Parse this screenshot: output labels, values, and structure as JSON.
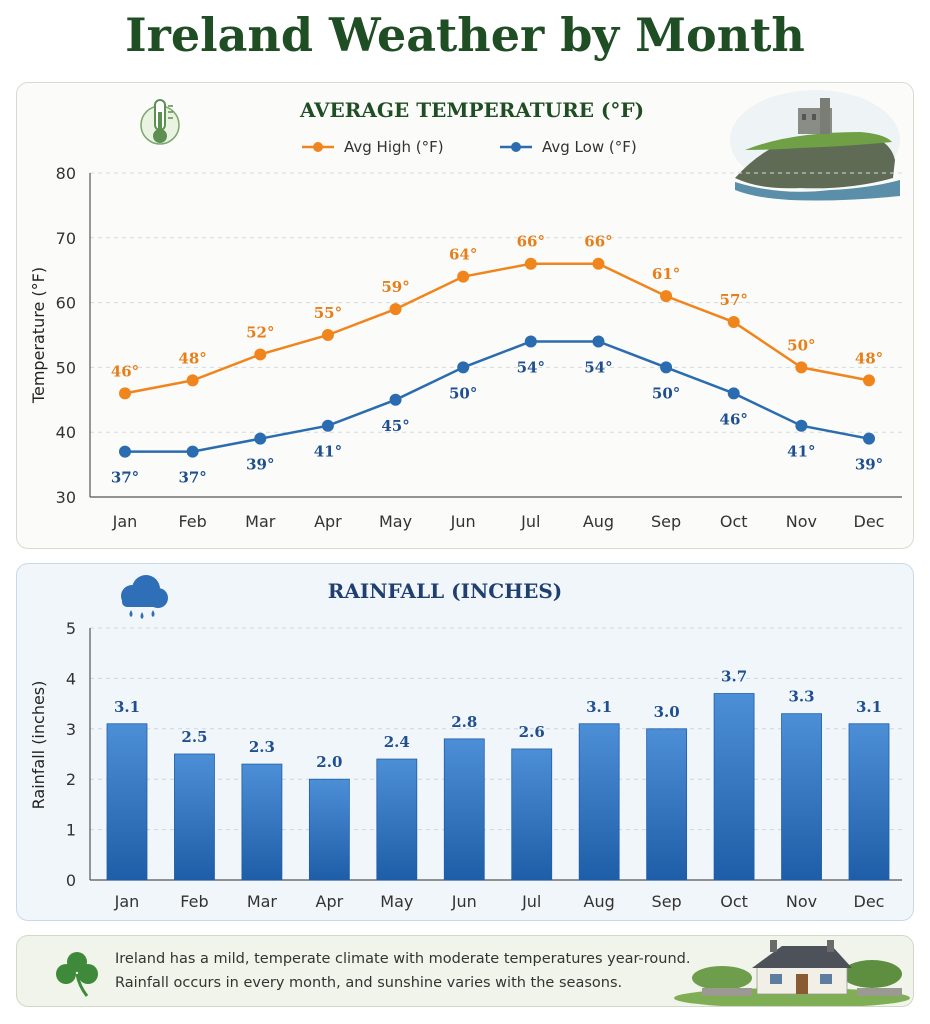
{
  "page": {
    "title": "Ireland Weather by Month"
  },
  "icons": {
    "temperature": "thermometer-icon",
    "rain": "rain-cloud-icon",
    "footer": "shamrock-icon",
    "castle_scene": "castle-cliff-illustration",
    "cottage_scene": "cottage-illustration"
  },
  "chart_data": [
    {
      "type": "line",
      "title": "AVERAGE TEMPERATURE (°F)",
      "ylabel": "Temperature (°F)",
      "xlabel": "",
      "categories": [
        "Jan",
        "Feb",
        "Mar",
        "Apr",
        "May",
        "Jun",
        "Jul",
        "Aug",
        "Sep",
        "Oct",
        "Nov",
        "Dec"
      ],
      "ylim": [
        30,
        80
      ],
      "yticks": [
        30,
        40,
        50,
        60,
        70,
        80
      ],
      "grid": true,
      "legend": "top-center",
      "series": [
        {
          "name": "Avg High (°F)",
          "color": "#f0851e",
          "label_color": "#e67e1a",
          "values": [
            46,
            48,
            52,
            55,
            59,
            64,
            66,
            66,
            61,
            57,
            50,
            48
          ]
        },
        {
          "name": "Avg Low (°F)",
          "color": "#2b6cb0",
          "label_color": "#1f4f8f",
          "values": [
            37,
            37,
            39,
            41,
            45,
            50,
            54,
            54,
            50,
            46,
            41,
            39
          ]
        }
      ],
      "labels_high": [
        "46°",
        "48°",
        "52°",
        "55°",
        "59°",
        "64°",
        "66°",
        "66°",
        "61°",
        "57°",
        "50°",
        "48°"
      ],
      "labels_low": [
        "37°",
        "37°",
        "39°",
        "41°",
        "45°",
        "50°",
        "54°",
        "54°",
        "50°",
        "46°",
        "41°",
        "39°"
      ]
    },
    {
      "type": "bar",
      "title": "RAINFALL (INCHES)",
      "ylabel": "Rainfall (inches)",
      "xlabel": "",
      "categories": [
        "Jan",
        "Feb",
        "Mar",
        "Apr",
        "May",
        "Jun",
        "Jul",
        "Aug",
        "Sep",
        "Oct",
        "Nov",
        "Dec"
      ],
      "ylim": [
        0,
        5
      ],
      "yticks": [
        0,
        1,
        2,
        3,
        4,
        5
      ],
      "grid": true,
      "color": "#2f74c0",
      "label_color": "#1f4f8f",
      "values": [
        3.1,
        2.5,
        2.3,
        2.0,
        2.4,
        2.8,
        2.6,
        3.1,
        3.0,
        3.7,
        3.3,
        3.1
      ],
      "value_labels": [
        "3.1",
        "2.5",
        "2.3",
        "2.0",
        "2.4",
        "2.8",
        "2.6",
        "3.1",
        "3.0",
        "3.7",
        "3.3",
        "3.1"
      ]
    }
  ],
  "footer": {
    "line1": "Ireland has a mild, temperate climate with moderate temperatures year-round.",
    "line2": "Rainfall occurs in every month, and sunshine varies with the seasons."
  }
}
